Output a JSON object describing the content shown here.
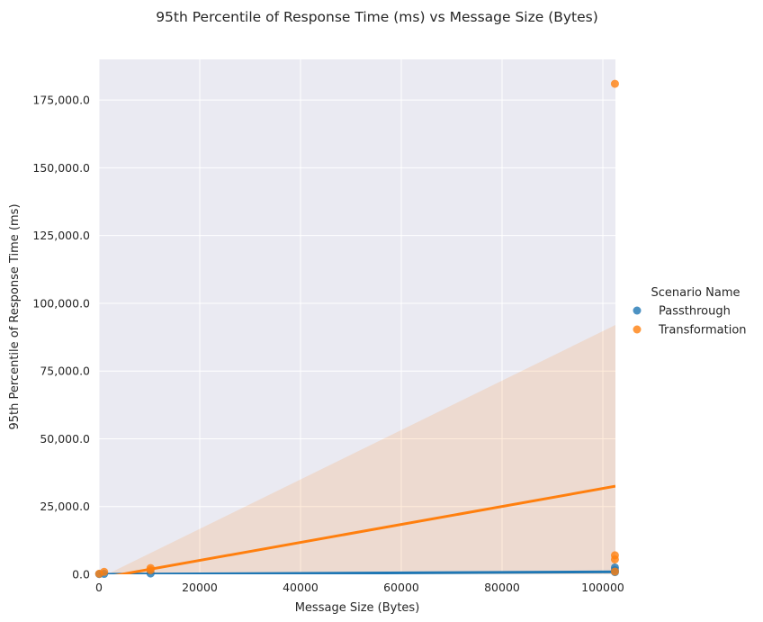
{
  "chart_data": {
    "type": "scatter",
    "title": "95th Percentile of Response Time (ms) vs Message Size (Bytes)",
    "xlabel": "Message Size (Bytes)",
    "ylabel": "95th Percentile of Response Time (ms)",
    "xlim": [
      0,
      102500
    ],
    "ylim": [
      0,
      190000
    ],
    "xticks": [
      0,
      20000,
      40000,
      60000,
      80000,
      100000
    ],
    "xtick_labels": [
      "0",
      "20000",
      "40000",
      "60000",
      "80000",
      "100000"
    ],
    "yticks": [
      0,
      25000,
      50000,
      75000,
      100000,
      125000,
      150000,
      175000
    ],
    "ytick_labels": [
      "0.0",
      "25,000.0",
      "50,000.0",
      "75,000.0",
      "100,000.0",
      "125,000.0",
      "150,000.0",
      "175,000.0"
    ],
    "grid": true,
    "legend": {
      "title": "Scenario Name",
      "position": "right"
    },
    "series": [
      {
        "name": "Passthrough",
        "color": "#1f77b4",
        "points": [
          [
            50,
            100
          ],
          [
            1024,
            150
          ],
          [
            10240,
            300
          ],
          [
            102400,
            2500
          ],
          [
            102400,
            1500
          ],
          [
            102400,
            800
          ]
        ],
        "fit": [
          [
            0,
            0
          ],
          [
            102500,
            900
          ]
        ]
      },
      {
        "name": "Transformation",
        "color": "#ff7f0e",
        "points": [
          [
            50,
            200
          ],
          [
            1024,
            900
          ],
          [
            10240,
            2300
          ],
          [
            10240,
            1500
          ],
          [
            102400,
            181000
          ],
          [
            102400,
            7000
          ],
          [
            102400,
            5500
          ],
          [
            102400,
            1000
          ]
        ],
        "fit": [
          [
            0,
            -1500
          ],
          [
            102500,
            32500
          ]
        ],
        "ci_band": {
          "lower": [
            [
              0,
              -1500
            ],
            [
              102500,
              -27000
            ]
          ],
          "upper": [
            [
              0,
              -1500
            ],
            [
              102500,
              92000
            ]
          ]
        }
      }
    ]
  }
}
